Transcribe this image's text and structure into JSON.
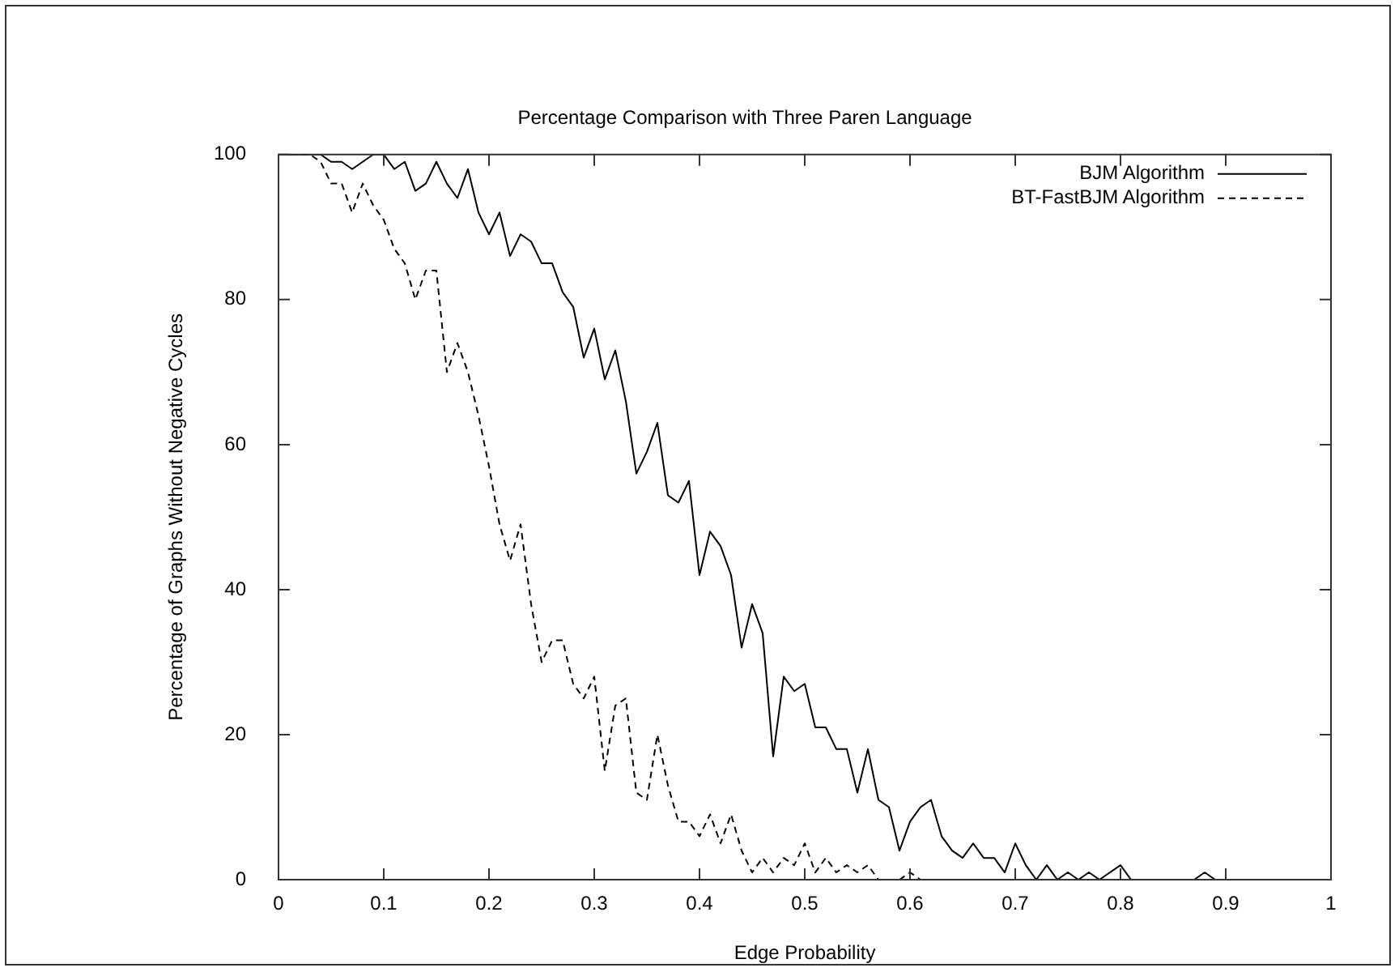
{
  "chart_data": {
    "type": "line",
    "title": "Percentage Comparison with Three Paren Language",
    "xlabel": "Edge Probability",
    "ylabel": "Percentage of Graphs Without Negative Cycles",
    "x": [
      0,
      0.01,
      0.02,
      0.03,
      0.04,
      0.05,
      0.06,
      0.07,
      0.08,
      0.09,
      0.1,
      0.11,
      0.12,
      0.13,
      0.14,
      0.15,
      0.16,
      0.17,
      0.18,
      0.19,
      0.2,
      0.21,
      0.22,
      0.23,
      0.24,
      0.25,
      0.26,
      0.27,
      0.28,
      0.29,
      0.3,
      0.31,
      0.32,
      0.33,
      0.34,
      0.35,
      0.36,
      0.37,
      0.38,
      0.39,
      0.4,
      0.41,
      0.42,
      0.43,
      0.44,
      0.45,
      0.46,
      0.47,
      0.48,
      0.49,
      0.5,
      0.51,
      0.52,
      0.53,
      0.54,
      0.55,
      0.56,
      0.57,
      0.58,
      0.59,
      0.6,
      0.61,
      0.62,
      0.63,
      0.64,
      0.65,
      0.66,
      0.67,
      0.68,
      0.69,
      0.7,
      0.71,
      0.72,
      0.73,
      0.74,
      0.75,
      0.76,
      0.77,
      0.78,
      0.79,
      0.8,
      0.81,
      0.82,
      0.83,
      0.84,
      0.85,
      0.86,
      0.87,
      0.88,
      0.89,
      0.9,
      0.91,
      0.92,
      0.93,
      0.94,
      0.95,
      0.96,
      0.97,
      0.98,
      0.99,
      1
    ],
    "series": [
      {
        "name": "BJM Algorithm",
        "color": "#000000",
        "line_style": "solid",
        "values": [
          100,
          100,
          100,
          100,
          100,
          99,
          99,
          98,
          99,
          100,
          100,
          98,
          99,
          95,
          96,
          99,
          96,
          94,
          98,
          92,
          89,
          92,
          86,
          89,
          88,
          85,
          85,
          81,
          79,
          72,
          76,
          69,
          73,
          66,
          56,
          59,
          63,
          53,
          52,
          55,
          42,
          48,
          46,
          42,
          32,
          38,
          34,
          17,
          28,
          26,
          27,
          21,
          21,
          18,
          18,
          12,
          18,
          11,
          10,
          4,
          8,
          10,
          11,
          6,
          4,
          3,
          5,
          3,
          3,
          1,
          5,
          2,
          0,
          2,
          0,
          1,
          0,
          1,
          0,
          1,
          2,
          0,
          0,
          0,
          0,
          0,
          0,
          0,
          1,
          0,
          0,
          0,
          0,
          0,
          0,
          0,
          0,
          0,
          0,
          0,
          0
        ]
      },
      {
        "name": "BT-FastBJM Algorithm",
        "color": "#000000",
        "line_style": "dashed",
        "values": [
          100,
          100,
          100,
          100,
          99,
          96,
          96,
          92,
          96,
          93,
          91,
          87,
          85,
          80,
          84,
          84,
          70,
          74,
          70,
          64,
          57,
          49,
          44,
          49,
          38,
          30,
          33,
          33,
          27,
          25,
          28,
          15,
          24,
          25,
          12,
          11,
          20,
          13,
          8,
          8,
          6,
          9,
          5,
          9,
          4,
          1,
          3,
          1,
          3,
          2,
          5,
          1,
          3,
          1,
          2,
          1,
          2,
          0,
          0,
          0,
          1,
          0,
          0,
          0,
          0,
          0,
          0,
          0,
          0,
          0,
          0,
          0,
          0,
          0,
          0,
          0,
          0,
          0,
          0,
          0,
          0,
          0,
          0,
          0,
          0,
          0,
          0,
          0,
          0,
          0,
          0,
          0,
          0,
          0,
          0,
          0,
          0,
          0,
          0,
          0,
          0
        ]
      }
    ],
    "xlim": [
      0,
      1
    ],
    "xticks": [
      0,
      0.1,
      0.2,
      0.3,
      0.4,
      0.5,
      0.6,
      0.7,
      0.8,
      0.9,
      1
    ],
    "ylim": [
      0,
      100
    ],
    "yticks": [
      0,
      20,
      40,
      60,
      80,
      100
    ],
    "grid": false,
    "legend": "top right",
    "marker": "none"
  }
}
